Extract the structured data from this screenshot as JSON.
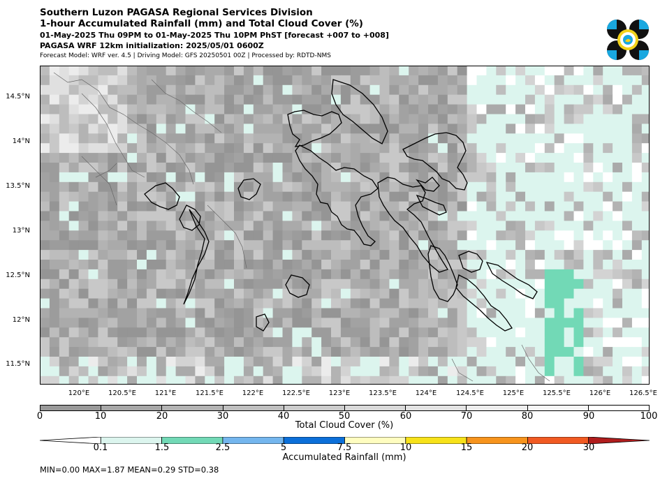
{
  "header": {
    "line1": "Southern Luzon PAGASA Regional Services Division",
    "line2": "1-hour Accumulated Rainfall (mm) and Total Cloud Cover (%)",
    "line3": "01-May-2025 Thu 09PM to 01-May-2025 Thu 10PM PhST [forecast +007 to +008]",
    "line4": "PAGASA WRF 12km initialization: 2025/05/01 0600Z",
    "line5": "Forecast Model: WRF ver. 4.5 | Driving Model: GFS 20250501 00Z | Processed by: RDTD-NMS"
  },
  "logo": {
    "icon": "pagasa-logo-icon",
    "colors": [
      "#111111",
      "#19a8e0",
      "#f2d21b"
    ]
  },
  "map": {
    "lat_labels": [
      "14.5°N",
      "14°N",
      "13.5°N",
      "13°N",
      "12.5°N",
      "12°N",
      "11.5°N"
    ],
    "lon_labels": [
      "120°E",
      "120.5°E",
      "121°E",
      "121.5°E",
      "122°E",
      "122.5°E",
      "123°E",
      "123.5°E",
      "124°E",
      "124.5°E",
      "125°E",
      "125.5°E",
      "126°E",
      "126.5°E"
    ],
    "lat_range": [
      11.3,
      14.85
    ],
    "lon_range": [
      119.55,
      126.57
    ]
  },
  "cloud_colorbar": {
    "ticks": [
      "0",
      "10",
      "20",
      "30",
      "40",
      "50",
      "60",
      "70",
      "80",
      "90",
      "100"
    ],
    "colors": [
      "#999999",
      "#a7a7a7",
      "#b3b3b3",
      "#bfbfbf",
      "#cccccc",
      "#d9d9d9",
      "#e3e3e3",
      "#ededed",
      "#f6f6f6",
      "#ffffff"
    ],
    "label": "Total Cloud Cover (%)"
  },
  "rain_colorbar": {
    "ticks": [
      "0.1",
      "1.5",
      "2.5",
      "5",
      "7.5",
      "10",
      "15",
      "20",
      "30"
    ],
    "colors": [
      "#ffffff",
      "#dcf5ee",
      "#72d9b6",
      "#74b6ee",
      "#0b6fd9",
      "#fffdc0",
      "#f7e21a",
      "#f7941d",
      "#f15a22",
      "#b11d1d"
    ],
    "label": "Accumulated Rainfall (mm)"
  },
  "stats": "MIN=0.00   MAX=1.87   MEAN=0.29   STD=0.38"
}
